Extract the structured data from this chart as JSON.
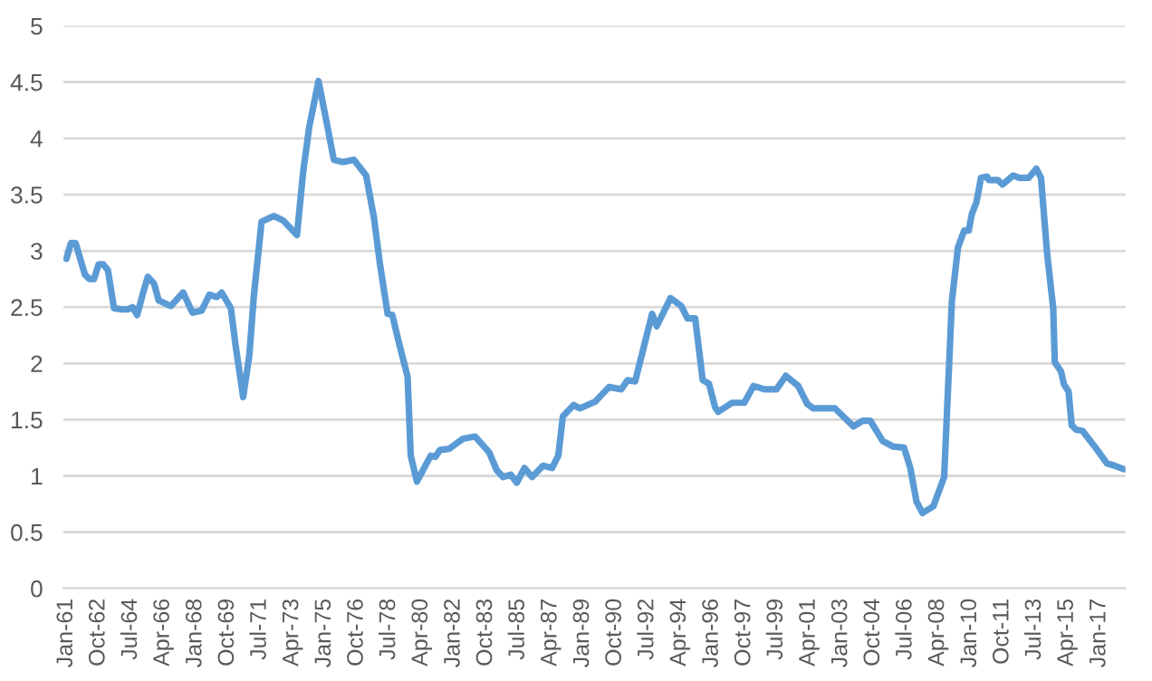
{
  "chart_data": {
    "type": "line",
    "x": [
      "1961-01",
      "1961-04",
      "1961-07",
      "1962-01",
      "1962-04",
      "1962-07",
      "1962-10",
      "1963-01",
      "1963-04",
      "1963-08",
      "1964-01",
      "1964-05",
      "1964-08",
      "1964-11",
      "1965-03",
      "1965-06",
      "1965-10",
      "1966-01",
      "1966-09",
      "1967-05",
      "1967-11",
      "1968-05",
      "1968-10",
      "1969-03",
      "1969-06",
      "1969-12",
      "1970-03",
      "1970-08",
      "1970-12",
      "1971-03",
      "1971-08",
      "1972-04",
      "1972-10",
      "1973-03",
      "1973-07",
      "1973-11",
      "1974-03",
      "1974-09",
      "1975-02",
      "1975-07",
      "1976-01",
      "1976-08",
      "1977-04",
      "1977-09",
      "1978-01",
      "1978-06",
      "1978-09",
      "1979-01",
      "1979-07",
      "1979-09",
      "1980-01",
      "1980-10",
      "1981-01",
      "1981-04",
      "1981-10",
      "1982-07",
      "1983-03",
      "1983-12",
      "1984-05",
      "1984-09",
      "1985-02",
      "1985-06",
      "1985-11",
      "1986-04",
      "1986-11",
      "1987-05",
      "1987-09",
      "1987-12",
      "1988-07",
      "1988-11",
      "1989-09",
      "1990-06",
      "1991-02",
      "1991-06",
      "1991-11",
      "1992-10",
      "1993-01",
      "1993-10",
      "1994-05",
      "1994-09",
      "1995-02",
      "1995-07",
      "1995-11",
      "1996-03",
      "1996-05",
      "1997-02",
      "1997-10",
      "1998-04",
      "1998-11",
      "1999-07",
      "2000-01",
      "2000-09",
      "2001-03",
      "2001-07",
      "2002-09",
      "2003-09",
      "2004-03",
      "2004-08",
      "2005-04",
      "2005-11",
      "2006-06",
      "2006-10",
      "2007-02",
      "2007-06",
      "2008-01",
      "2008-08",
      "2009-01",
      "2009-05",
      "2009-09",
      "2009-12",
      "2010-02",
      "2010-05",
      "2010-08",
      "2010-12",
      "2011-01",
      "2011-07",
      "2011-10",
      "2012-05",
      "2012-09",
      "2013-03",
      "2013-08",
      "2013-11",
      "2014-03",
      "2014-07",
      "2014-08",
      "2014-12",
      "2015-02",
      "2015-05",
      "2015-07",
      "2015-10",
      "2016-02",
      "2016-10",
      "2017-06",
      "2017-11",
      "2018-05"
    ],
    "series": [
      {
        "color": "#5b9bd5",
        "values": [
          2.93,
          3.07,
          3.07,
          2.79,
          2.75,
          2.75,
          2.88,
          2.88,
          2.83,
          2.49,
          2.48,
          2.48,
          2.5,
          2.43,
          2.63,
          2.77,
          2.71,
          2.56,
          2.51,
          2.63,
          2.45,
          2.47,
          2.61,
          2.59,
          2.63,
          2.49,
          2.17,
          1.7,
          2.07,
          2.6,
          3.26,
          3.31,
          3.27,
          3.2,
          3.14,
          3.7,
          4.1,
          4.51,
          4.16,
          3.81,
          3.79,
          3.81,
          3.67,
          3.3,
          2.88,
          2.44,
          2.43,
          2.2,
          1.88,
          1.18,
          0.95,
          1.18,
          1.17,
          1.23,
          1.24,
          1.33,
          1.35,
          1.21,
          1.05,
          0.99,
          1.01,
          0.94,
          1.07,
          0.99,
          1.09,
          1.07,
          1.18,
          1.53,
          1.63,
          1.6,
          1.66,
          1.79,
          1.77,
          1.85,
          1.84,
          2.44,
          2.33,
          2.58,
          2.51,
          2.4,
          2.4,
          1.85,
          1.82,
          1.61,
          1.57,
          1.65,
          1.65,
          1.8,
          1.77,
          1.77,
          1.89,
          1.8,
          1.64,
          1.6,
          1.6,
          1.44,
          1.49,
          1.49,
          1.31,
          1.26,
          1.25,
          1.07,
          0.77,
          0.67,
          0.73,
          0.99,
          2.55,
          3.03,
          3.18,
          3.18,
          3.33,
          3.43,
          3.65,
          3.66,
          3.63,
          3.63,
          3.59,
          3.67,
          3.65,
          3.65,
          3.73,
          3.65,
          2.98,
          2.49,
          2.01,
          1.93,
          1.81,
          1.75,
          1.45,
          1.41,
          1.4,
          1.26,
          1.11,
          1.09,
          1.06
        ]
      }
    ],
    "xlim": [
      "1960-11",
      "2018-06"
    ],
    "xticks": [
      {
        "value": "1961-01",
        "label": "Jan-61"
      },
      {
        "value": "1962-10",
        "label": "Oct-62"
      },
      {
        "value": "1964-07",
        "label": "Jul-64"
      },
      {
        "value": "1966-04",
        "label": "Apr-66"
      },
      {
        "value": "1968-01",
        "label": "Jan-68"
      },
      {
        "value": "1969-10",
        "label": "Oct-69"
      },
      {
        "value": "1971-07",
        "label": "Jul-71"
      },
      {
        "value": "1973-04",
        "label": "Apr-73"
      },
      {
        "value": "1975-01",
        "label": "Jan-75"
      },
      {
        "value": "1976-10",
        "label": "Oct-76"
      },
      {
        "value": "1978-07",
        "label": "Jul-78"
      },
      {
        "value": "1980-04",
        "label": "Apr-80"
      },
      {
        "value": "1982-01",
        "label": "Jan-82"
      },
      {
        "value": "1983-10",
        "label": "Oct-83"
      },
      {
        "value": "1985-07",
        "label": "Jul-85"
      },
      {
        "value": "1987-04",
        "label": "Apr-87"
      },
      {
        "value": "1989-01",
        "label": "Jan-89"
      },
      {
        "value": "1990-10",
        "label": "Oct-90"
      },
      {
        "value": "1992-07",
        "label": "Jul-92"
      },
      {
        "value": "1994-04",
        "label": "Apr-94"
      },
      {
        "value": "1996-01",
        "label": "Jan-96"
      },
      {
        "value": "1997-10",
        "label": "Oct-97"
      },
      {
        "value": "1999-07",
        "label": "Jul-99"
      },
      {
        "value": "2001-04",
        "label": "Apr-01"
      },
      {
        "value": "2003-01",
        "label": "Jan-03"
      },
      {
        "value": "2004-10",
        "label": "Oct-04"
      },
      {
        "value": "2006-07",
        "label": "Jul-06"
      },
      {
        "value": "2008-04",
        "label": "Apr-08"
      },
      {
        "value": "2010-01",
        "label": "Jan-10"
      },
      {
        "value": "2011-10",
        "label": "Oct-11"
      },
      {
        "value": "2013-07",
        "label": "Jul-13"
      },
      {
        "value": "2015-04",
        "label": "Apr-15"
      },
      {
        "value": "2017-01",
        "label": "Jan-17"
      }
    ],
    "ylim": [
      0,
      5
    ],
    "yticks": [
      0,
      0.5,
      1,
      1.5,
      2,
      2.5,
      3,
      3.5,
      4,
      4.5,
      5
    ],
    "grid": "y",
    "marker": "none",
    "line_style": "solid"
  }
}
